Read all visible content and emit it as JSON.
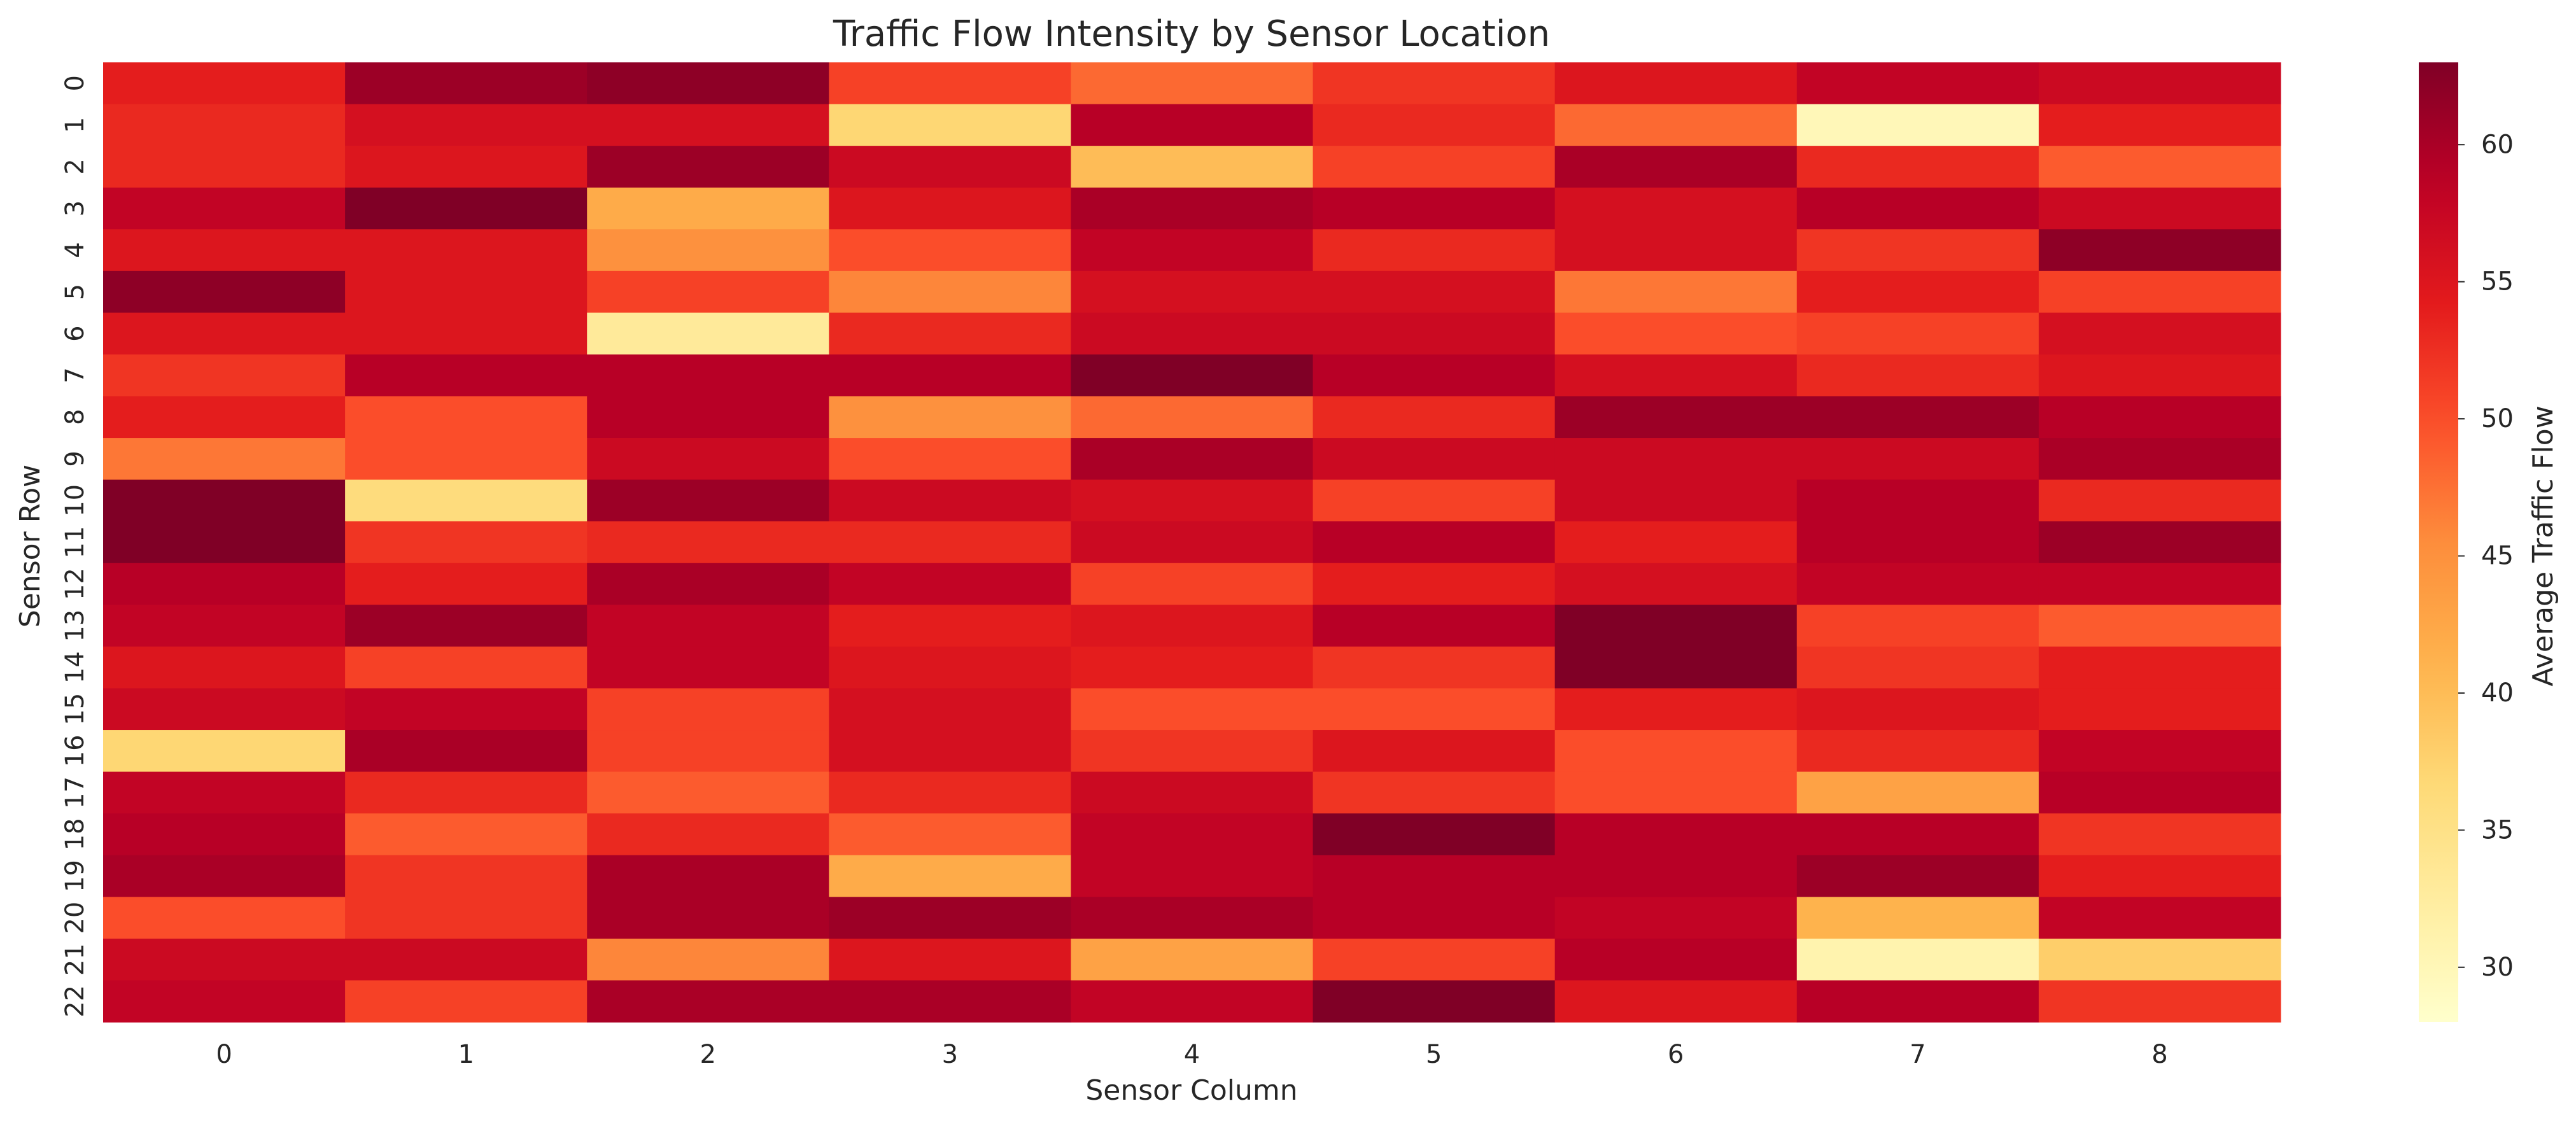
{
  "chart_data": {
    "type": "heatmap",
    "title": "Traffic Flow Intensity by Sensor Location",
    "xlabel": "Sensor Column",
    "ylabel": "Sensor Row",
    "colorbar_label": "Average Traffic Flow",
    "colormap": "YlOrRd",
    "value_range": [
      28,
      63
    ],
    "colorbar_ticks": [
      30,
      35,
      40,
      45,
      50,
      55,
      60
    ],
    "columns": [
      "0",
      "1",
      "2",
      "3",
      "4",
      "5",
      "6",
      "7",
      "8"
    ],
    "rows": [
      "0",
      "1",
      "2",
      "3",
      "4",
      "5",
      "6",
      "7",
      "8",
      "9",
      "10",
      "11",
      "12",
      "13",
      "14",
      "15",
      "16",
      "17",
      "18",
      "19",
      "20",
      "21",
      "22"
    ],
    "values": [
      [
        54,
        61,
        62,
        51,
        48,
        52,
        55,
        58,
        57
      ],
      [
        53,
        56,
        56,
        37,
        59,
        53,
        48,
        30,
        54
      ],
      [
        53,
        55,
        61,
        57,
        40,
        51,
        60,
        53,
        49
      ],
      [
        58,
        63,
        42,
        55,
        60,
        59,
        56,
        59,
        57
      ],
      [
        55,
        55,
        45,
        50,
        58,
        53,
        56,
        52,
        62
      ],
      [
        62,
        55,
        51,
        46,
        56,
        56,
        47,
        54,
        51
      ],
      [
        55,
        55,
        33,
        53,
        57,
        57,
        50,
        51,
        56
      ],
      [
        52,
        59,
        59,
        59,
        63,
        59,
        56,
        53,
        55
      ],
      [
        54,
        50,
        59,
        45,
        48,
        53,
        61,
        61,
        59
      ],
      [
        47,
        50,
        57,
        50,
        60,
        57,
        57,
        57,
        60
      ],
      [
        63,
        36,
        61,
        57,
        56,
        51,
        57,
        59,
        53
      ],
      [
        63,
        52,
        53,
        53,
        57,
        59,
        54,
        59,
        61
      ],
      [
        59,
        54,
        60,
        58,
        51,
        54,
        56,
        58,
        58
      ],
      [
        58,
        61,
        58,
        54,
        55,
        59,
        63,
        51,
        49
      ],
      [
        55,
        51,
        58,
        55,
        54,
        52,
        63,
        52,
        54
      ],
      [
        57,
        58,
        51,
        56,
        50,
        50,
        54,
        55,
        54
      ],
      [
        37,
        60,
        51,
        56,
        52,
        55,
        50,
        53,
        58
      ],
      [
        58,
        53,
        49,
        53,
        57,
        52,
        50,
        43,
        59
      ],
      [
        59,
        49,
        53,
        49,
        58,
        63,
        59,
        59,
        52
      ],
      [
        60,
        52,
        60,
        42,
        58,
        59,
        59,
        61,
        54
      ],
      [
        50,
        52,
        60,
        61,
        60,
        59,
        58,
        41,
        58
      ],
      [
        57,
        57,
        46,
        55,
        43,
        51,
        59,
        31,
        38
      ],
      [
        58,
        51,
        60,
        60,
        58,
        63,
        55,
        59,
        52
      ]
    ]
  }
}
